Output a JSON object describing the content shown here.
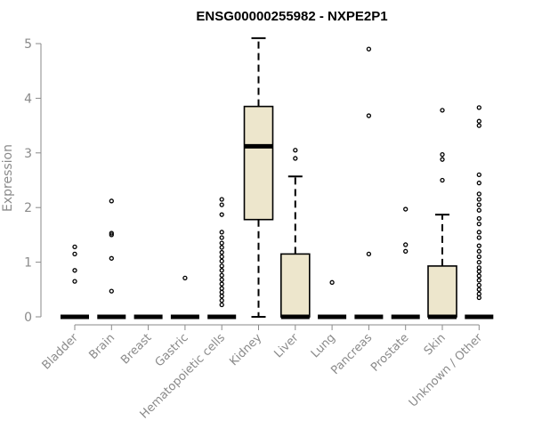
{
  "chart_data": {
    "type": "box",
    "title": "ENSG00000255982 - NXPE2P1",
    "xlabel": "",
    "ylabel": "Expression",
    "ylim": [
      0,
      5.2
    ],
    "yticks": [
      0,
      1,
      2,
      3,
      4,
      5
    ],
    "colors": {
      "box_fill": "#ede6cc",
      "line": "#000000",
      "axis": "#8a8a8a"
    },
    "categories": [
      "Bladder",
      "Brain",
      "Breast",
      "Gastric",
      "Hematopoietic cells",
      "Kidney",
      "Liver",
      "Lung",
      "Pancreas",
      "Prostate",
      "Skin",
      "Unknown / Other"
    ],
    "boxes": [
      {
        "category": "Bladder",
        "min": 0,
        "q1": 0,
        "median": 0,
        "q3": 0,
        "max": 0,
        "outliers": [
          0.65,
          0.85,
          1.15,
          1.28
        ]
      },
      {
        "category": "Brain",
        "min": 0,
        "q1": 0,
        "median": 0,
        "q3": 0,
        "max": 0,
        "outliers": [
          0.47,
          1.07,
          1.5,
          1.53,
          2.12
        ]
      },
      {
        "category": "Breast",
        "min": 0,
        "q1": 0,
        "median": 0,
        "q3": 0,
        "max": 0,
        "outliers": []
      },
      {
        "category": "Gastric",
        "min": 0,
        "q1": 0,
        "median": 0,
        "q3": 0,
        "max": 0,
        "outliers": [
          0.71
        ]
      },
      {
        "category": "Hematopoietic cells",
        "min": 0,
        "q1": 0,
        "median": 0,
        "q3": 0,
        "max": 0,
        "outliers": [
          0.22,
          0.3,
          0.38,
          0.45,
          0.52,
          0.6,
          0.68,
          0.76,
          0.85,
          0.93,
          1.02,
          1.1,
          1.18,
          1.27,
          1.35,
          1.45,
          1.55,
          1.87,
          2.05,
          2.15
        ]
      },
      {
        "category": "Kidney",
        "min": 0,
        "q1": 1.78,
        "median": 3.12,
        "q3": 3.85,
        "max": 5.1,
        "outliers": []
      },
      {
        "category": "Liver",
        "min": 0,
        "q1": 0,
        "median": 0,
        "q3": 1.15,
        "max": 2.57,
        "outliers": [
          2.9,
          3.05
        ]
      },
      {
        "category": "Lung",
        "min": 0,
        "q1": 0,
        "median": 0,
        "q3": 0,
        "max": 0,
        "outliers": [
          0.63
        ]
      },
      {
        "category": "Pancreas",
        "min": 0,
        "q1": 0,
        "median": 0,
        "q3": 0,
        "max": 0,
        "outliers": [
          1.15,
          3.68,
          4.9
        ]
      },
      {
        "category": "Prostate",
        "min": 0,
        "q1": 0,
        "median": 0,
        "q3": 0,
        "max": 0,
        "outliers": [
          1.2,
          1.32,
          1.97
        ]
      },
      {
        "category": "Skin",
        "min": 0,
        "q1": 0,
        "median": 0,
        "q3": 0.93,
        "max": 1.87,
        "outliers": [
          2.5,
          2.88,
          2.97,
          3.78
        ]
      },
      {
        "category": "Unknown / Other",
        "min": 0,
        "q1": 0,
        "median": 0,
        "q3": 0,
        "max": 0,
        "outliers": [
          0.35,
          0.42,
          0.5,
          0.58,
          0.67,
          0.75,
          0.83,
          0.9,
          1.0,
          1.1,
          1.2,
          1.3,
          1.45,
          1.55,
          1.7,
          1.8,
          1.95,
          2.05,
          2.15,
          2.25,
          2.45,
          2.6,
          3.5,
          3.58,
          3.83
        ]
      }
    ]
  }
}
